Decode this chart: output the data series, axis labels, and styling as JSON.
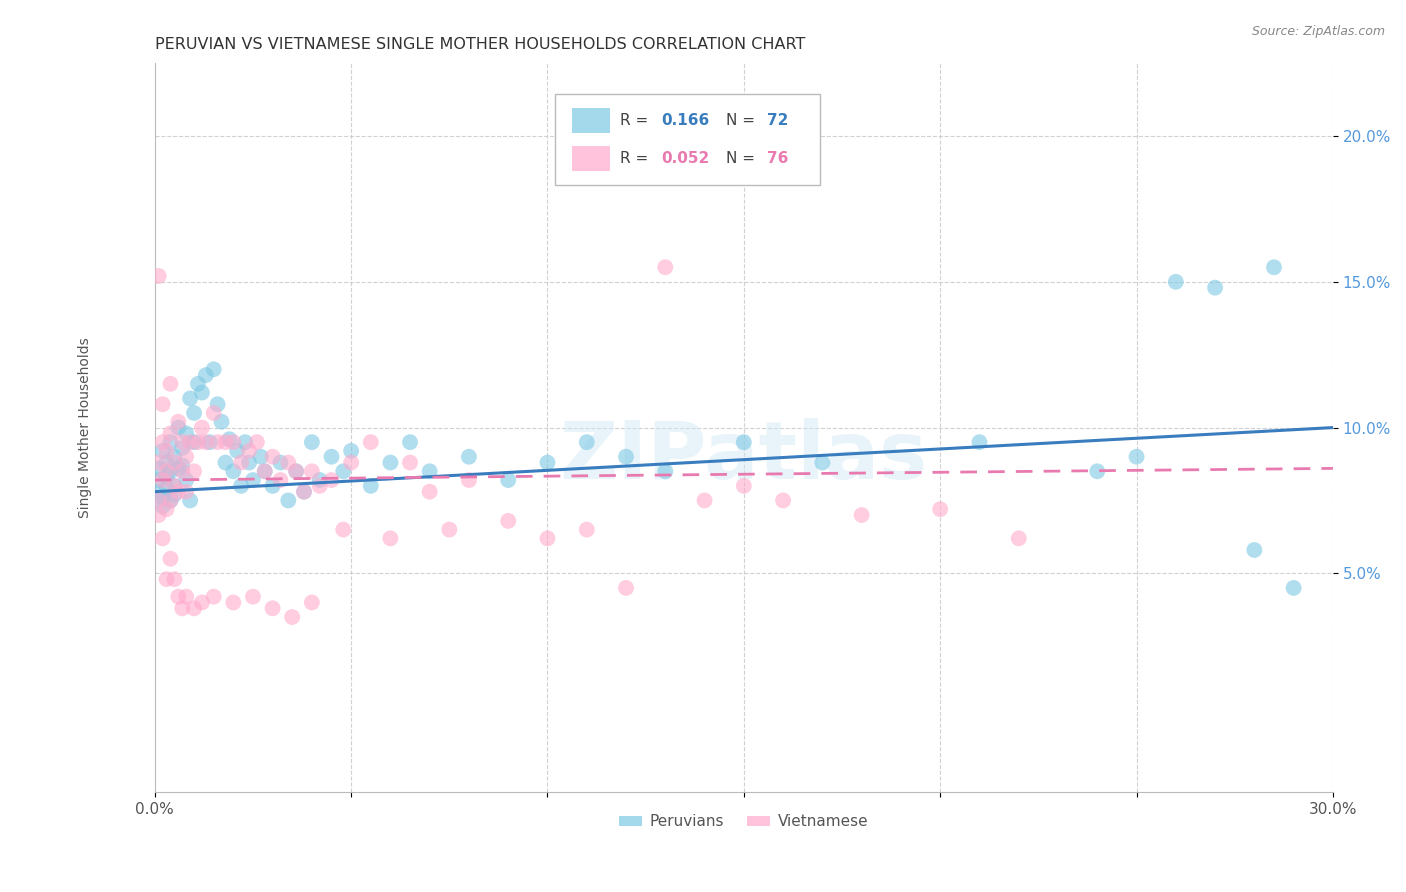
{
  "title": "PERUVIAN VS VIETNAMESE SINGLE MOTHER HOUSEHOLDS CORRELATION CHART",
  "source": "Source: ZipAtlas.com",
  "xlabel_blue": "Peruvians",
  "xlabel_pink": "Vietnamese",
  "ylabel": "Single Mother Households",
  "xlim": [
    0.0,
    0.3
  ],
  "ylim": [
    -0.025,
    0.225
  ],
  "xticks": [
    0.0,
    0.05,
    0.1,
    0.15,
    0.2,
    0.25,
    0.3
  ],
  "xtick_labels": [
    "0.0%",
    "",
    "",
    "",
    "",
    "",
    "30.0%"
  ],
  "ytick_vals_right": [
    0.05,
    0.1,
    0.15,
    0.2
  ],
  "ytick_labels_right": [
    "5.0%",
    "10.0%",
    "15.0%",
    "20.0%"
  ],
  "blue_R": "0.166",
  "blue_N": "72",
  "pink_R": "0.052",
  "pink_N": "76",
  "blue_color": "#7ec8e3",
  "pink_color": "#ffaacc",
  "blue_line_color": "#3a7dbf",
  "pink_line_color": "#e87ab0",
  "watermark": "ZIPatlas",
  "blue_x": [
    0.001,
    0.001,
    0.001,
    0.002,
    0.002,
    0.002,
    0.003,
    0.003,
    0.003,
    0.004,
    0.004,
    0.004,
    0.005,
    0.005,
    0.005,
    0.006,
    0.006,
    0.007,
    0.007,
    0.008,
    0.008,
    0.009,
    0.009,
    0.01,
    0.01,
    0.011,
    0.012,
    0.013,
    0.014,
    0.015,
    0.016,
    0.017,
    0.018,
    0.019,
    0.02,
    0.021,
    0.022,
    0.023,
    0.024,
    0.025,
    0.027,
    0.028,
    0.03,
    0.032,
    0.034,
    0.036,
    0.038,
    0.04,
    0.042,
    0.045,
    0.048,
    0.05,
    0.055,
    0.06,
    0.065,
    0.07,
    0.08,
    0.09,
    0.1,
    0.11,
    0.12,
    0.13,
    0.15,
    0.17,
    0.21,
    0.24,
    0.25,
    0.26,
    0.27,
    0.28,
    0.285,
    0.29
  ],
  "blue_y": [
    0.078,
    0.082,
    0.086,
    0.073,
    0.076,
    0.092,
    0.079,
    0.083,
    0.088,
    0.075,
    0.085,
    0.095,
    0.08,
    0.077,
    0.09,
    0.086,
    0.1,
    0.087,
    0.093,
    0.082,
    0.098,
    0.075,
    0.11,
    0.095,
    0.105,
    0.115,
    0.112,
    0.118,
    0.095,
    0.12,
    0.108,
    0.102,
    0.088,
    0.096,
    0.085,
    0.092,
    0.08,
    0.095,
    0.088,
    0.082,
    0.09,
    0.085,
    0.08,
    0.088,
    0.075,
    0.085,
    0.078,
    0.095,
    0.082,
    0.09,
    0.085,
    0.092,
    0.08,
    0.088,
    0.095,
    0.085,
    0.09,
    0.082,
    0.088,
    0.095,
    0.09,
    0.085,
    0.095,
    0.088,
    0.095,
    0.085,
    0.09,
    0.15,
    0.148,
    0.058,
    0.155,
    0.045
  ],
  "pink_x": [
    0.001,
    0.001,
    0.001,
    0.002,
    0.002,
    0.002,
    0.003,
    0.003,
    0.003,
    0.004,
    0.004,
    0.004,
    0.005,
    0.005,
    0.006,
    0.006,
    0.007,
    0.007,
    0.008,
    0.008,
    0.009,
    0.01,
    0.011,
    0.012,
    0.013,
    0.015,
    0.016,
    0.018,
    0.02,
    0.022,
    0.024,
    0.026,
    0.028,
    0.03,
    0.032,
    0.034,
    0.036,
    0.038,
    0.04,
    0.042,
    0.045,
    0.048,
    0.05,
    0.055,
    0.06,
    0.065,
    0.07,
    0.075,
    0.08,
    0.09,
    0.1,
    0.11,
    0.12,
    0.13,
    0.14,
    0.15,
    0.16,
    0.18,
    0.2,
    0.22,
    0.001,
    0.002,
    0.003,
    0.004,
    0.005,
    0.006,
    0.007,
    0.008,
    0.01,
    0.012,
    0.015,
    0.02,
    0.025,
    0.03,
    0.035,
    0.04
  ],
  "pink_y": [
    0.152,
    0.088,
    0.075,
    0.095,
    0.082,
    0.108,
    0.072,
    0.085,
    0.092,
    0.098,
    0.075,
    0.115,
    0.08,
    0.088,
    0.078,
    0.102,
    0.095,
    0.085,
    0.09,
    0.078,
    0.095,
    0.085,
    0.095,
    0.1,
    0.095,
    0.105,
    0.095,
    0.095,
    0.095,
    0.088,
    0.092,
    0.095,
    0.085,
    0.09,
    0.082,
    0.088,
    0.085,
    0.078,
    0.085,
    0.08,
    0.082,
    0.065,
    0.088,
    0.095,
    0.062,
    0.088,
    0.078,
    0.065,
    0.082,
    0.068,
    0.062,
    0.065,
    0.045,
    0.155,
    0.075,
    0.08,
    0.075,
    0.07,
    0.072,
    0.062,
    0.07,
    0.062,
    0.048,
    0.055,
    0.048,
    0.042,
    0.038,
    0.042,
    0.038,
    0.04,
    0.042,
    0.04,
    0.042,
    0.038,
    0.035,
    0.04
  ]
}
